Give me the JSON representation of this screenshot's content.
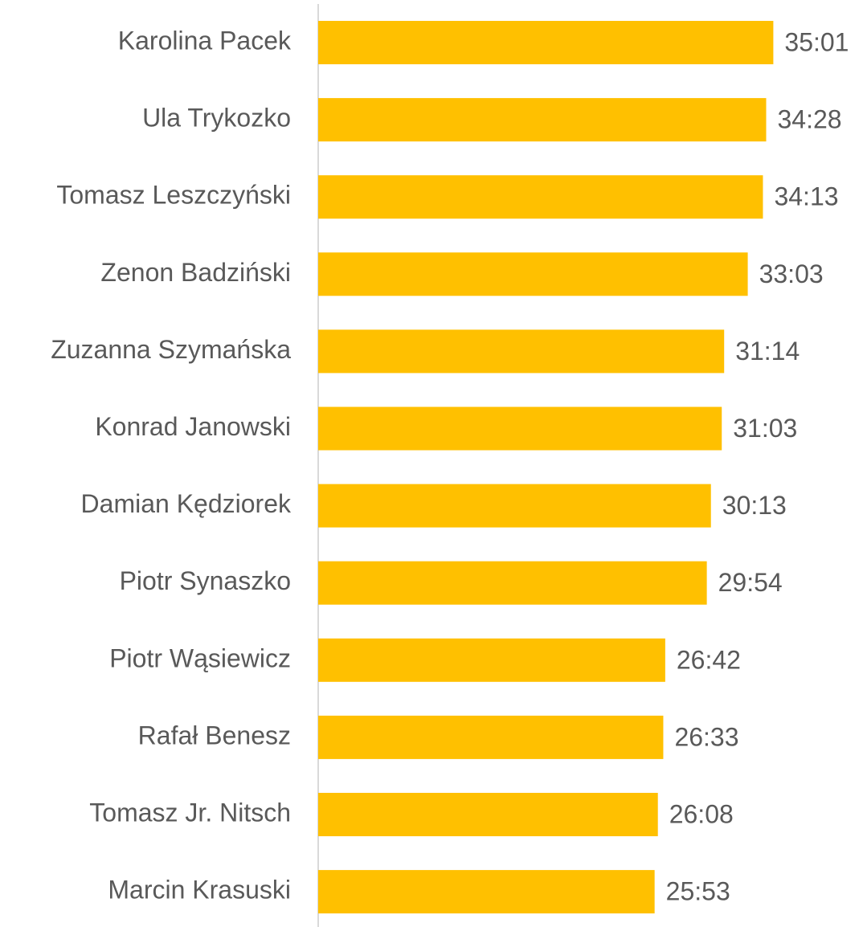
{
  "chart_data": {
    "type": "barh",
    "categories": [
      "Karolina Pacek",
      "Ula Trykozko",
      "Tomasz Leszczyński",
      "Zenon Badziński",
      "Zuzanna Szymańska",
      "Konrad Janowski",
      "Damian Kędziorek",
      "Piotr Synaszko",
      "Piotr Wąsiewicz",
      "Rafał Benesz",
      "Tomasz Jr. Nitsch",
      "Marcin Krasuski"
    ],
    "values": [
      2101,
      2068,
      2053,
      1983,
      1874,
      1863,
      1813,
      1794,
      1602,
      1593,
      1568,
      1553
    ],
    "value_labels": [
      "35:01",
      "34:28",
      "34:13",
      "33:03",
      "31:14",
      "31:03",
      "30:13",
      "29:54",
      "26:42",
      "26:33",
      "26:08",
      "25:53"
    ],
    "color": "#ffc000",
    "xlim": [
      0,
      2400
    ]
  }
}
